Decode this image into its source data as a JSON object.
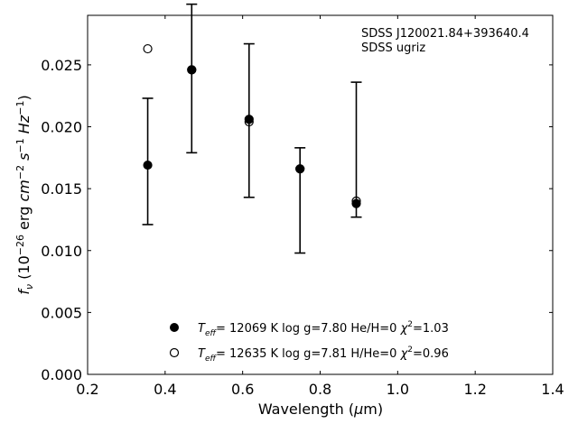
{
  "chart_data": {
    "type": "scatter",
    "title": "",
    "annotation_lines": [
      "SDSS J120021.84+393640.4",
      "SDSS ugriz"
    ],
    "xlabel": {
      "pre": "Wavelength (",
      "mu": "μ",
      "post": "m)"
    },
    "ylabel": {
      "f": "f",
      "sub": "ν",
      "open": " (10",
      "exp1": "−26",
      "erg": " erg ",
      "cm": "cm",
      "exp2": "−2",
      "s": " s",
      "exp3": "−1",
      "hz": " Hz",
      "exp4": "−1",
      "close": ")"
    },
    "xlim": [
      0.2,
      1.4
    ],
    "ylim": [
      0.0,
      0.029
    ],
    "xticks": [
      0.2,
      0.4,
      0.6,
      0.8,
      1.0,
      1.2,
      1.4
    ],
    "xtick_labels": [
      "0.2",
      "0.4",
      "0.6",
      "0.8",
      "1.0",
      "1.2",
      "1.4"
    ],
    "yticks": [
      0.0,
      0.005,
      0.01,
      0.015,
      0.02,
      0.025
    ],
    "ytick_labels": [
      "0.000",
      "0.005",
      "0.010",
      "0.015",
      "0.020",
      "0.025"
    ],
    "grid": false,
    "legend_position": "bottom-center",
    "observed": {
      "x": [
        0.3551,
        0.4686,
        0.6166,
        0.748,
        0.8932
      ],
      "y": [
        0.0169,
        0.0246,
        0.0205,
        0.0166,
        0.0137
      ],
      "err_low": [
        0.0121,
        0.0179,
        0.0143,
        0.0098,
        0.0127
      ],
      "err_high": [
        0.0223,
        0.0299,
        0.0267,
        0.0183,
        0.0236
      ]
    },
    "series": [
      {
        "marker": "filled",
        "label": {
          "T": "T",
          "sub": "eff",
          "rest": "= 12069 K  log g=7.80  He/H=0  ",
          "chi": "χ",
          "sup": "2",
          "val": "=1.03"
        },
        "x": [
          0.3551,
          0.4686,
          0.6166,
          0.748,
          0.8932
        ],
        "y": [
          0.0169,
          0.0246,
          0.0206,
          0.0166,
          0.0138
        ]
      },
      {
        "marker": "open",
        "label": {
          "T": "T",
          "sub": "eff",
          "rest": "= 12635 K  log g=7.81  H/He=0  ",
          "chi": "χ",
          "sup": "2",
          "val": "=0.96"
        },
        "x": [
          0.3551,
          0.4686,
          0.6166,
          0.748,
          0.8932
        ],
        "y": [
          0.0263,
          0.0246,
          0.0204,
          0.0166,
          0.014
        ]
      }
    ]
  }
}
